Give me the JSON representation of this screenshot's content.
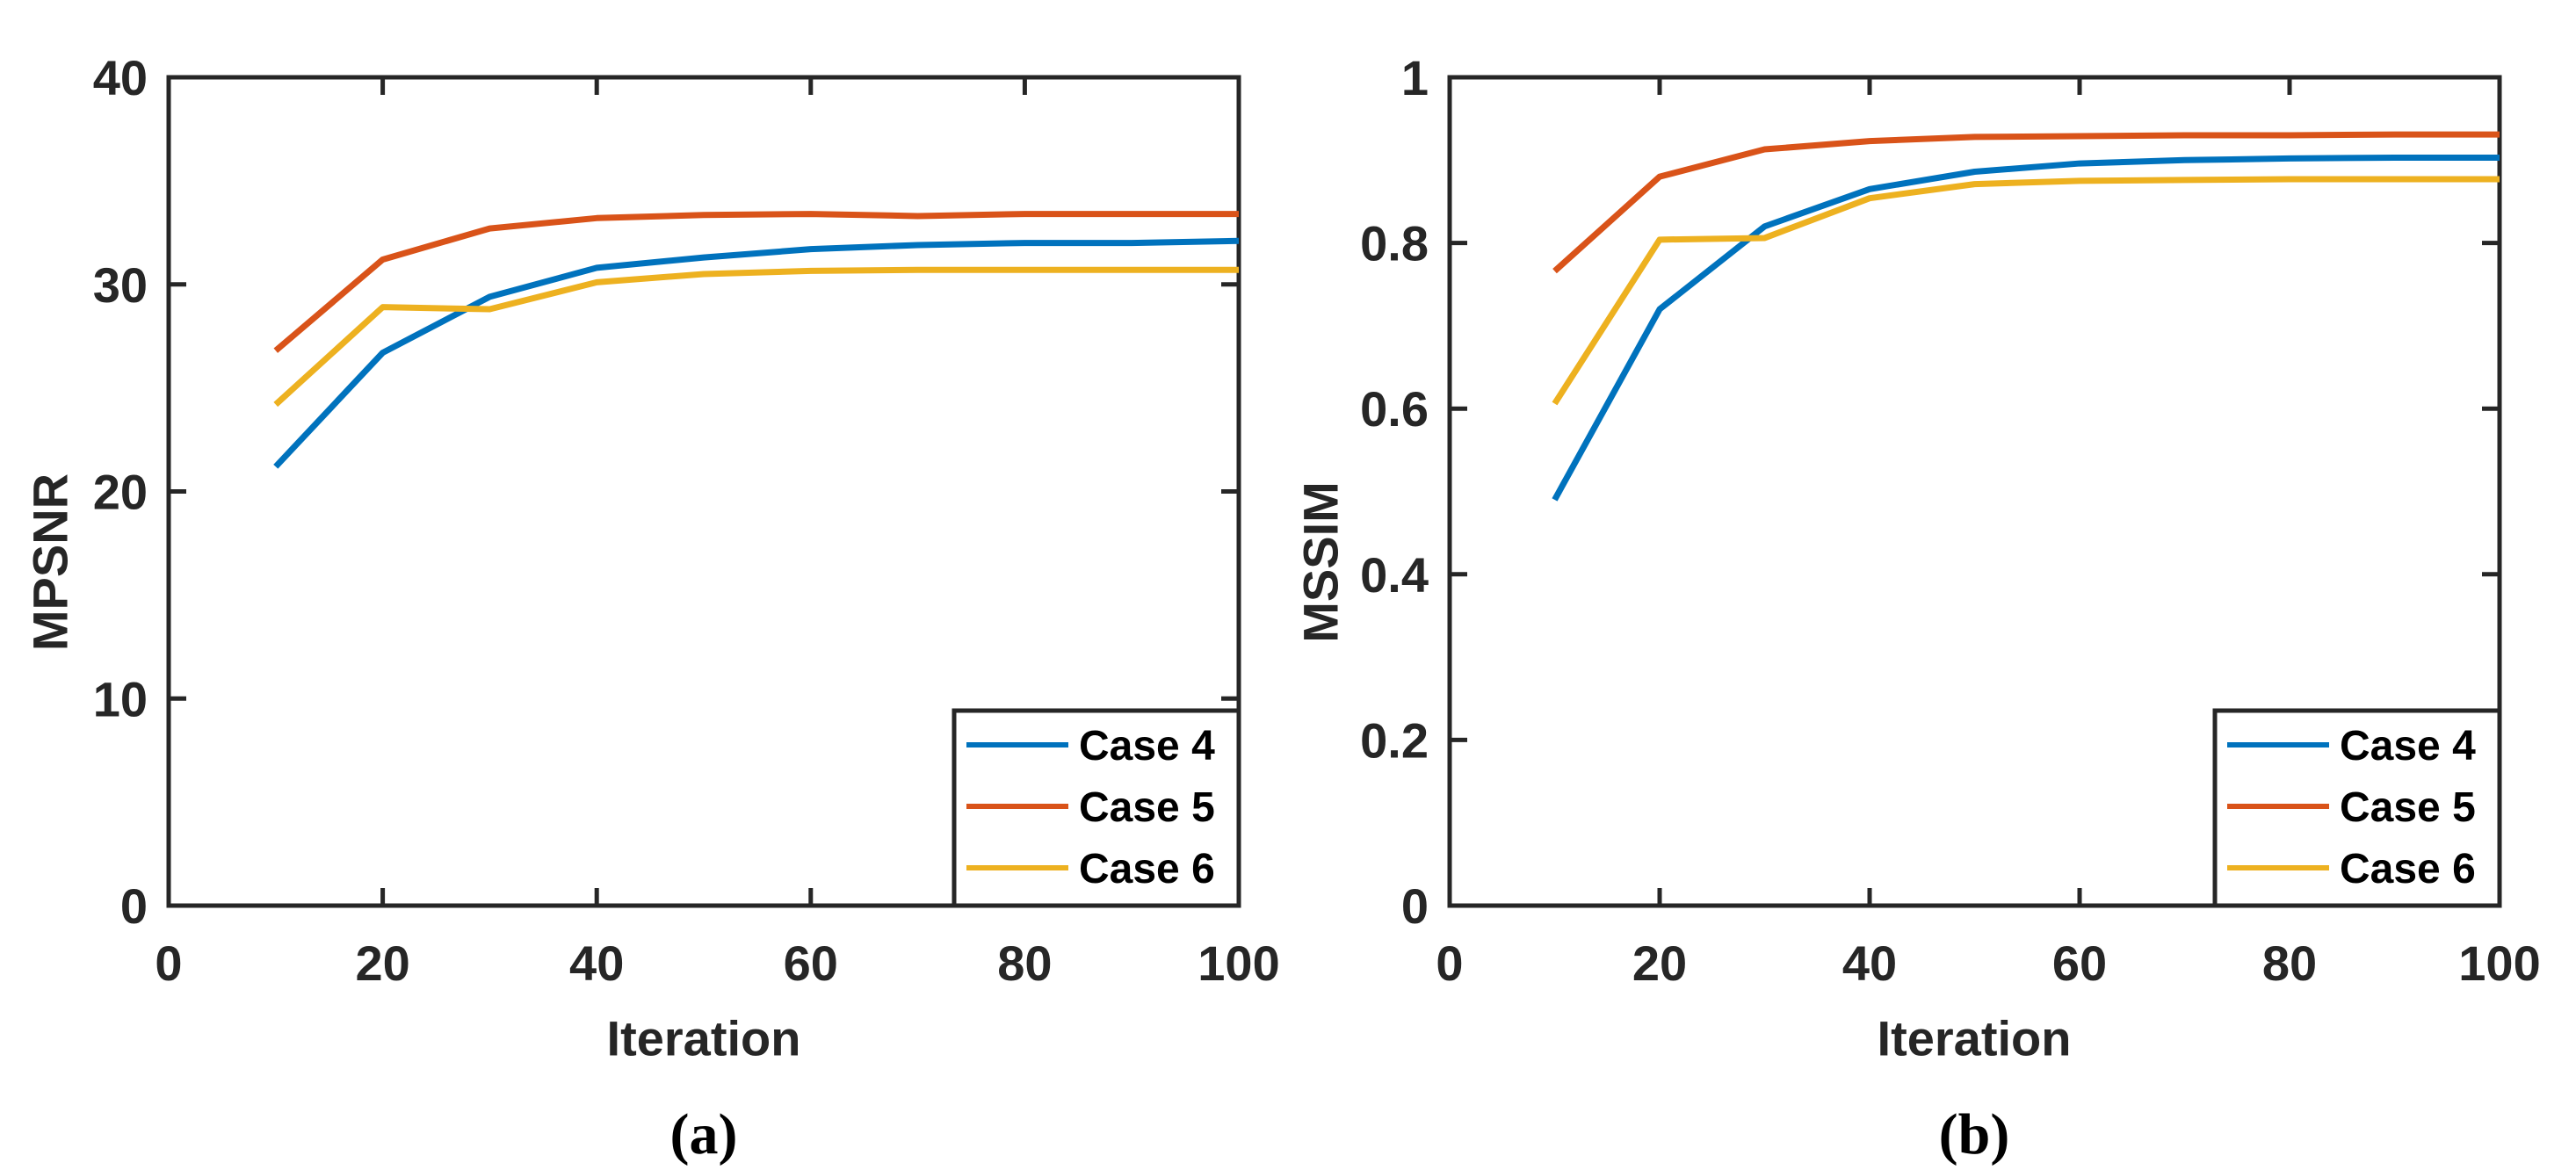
{
  "colors": {
    "background": "#ffffff",
    "axis": "#262626",
    "text": "#262626",
    "case4_blue": "#0072BD",
    "case5_red": "#D95319",
    "case6_yellow": "#EDB120"
  },
  "chart_data": [
    {
      "type": "line",
      "caption": "(a)",
      "xlabel": "Iteration",
      "ylabel": "MPSNR",
      "xlim": [
        0,
        100
      ],
      "ylim": [
        0,
        40
      ],
      "xticks": [
        0,
        20,
        40,
        60,
        80,
        100
      ],
      "xtick_labels": [
        "0",
        "20",
        "40",
        "60",
        "80",
        "100"
      ],
      "yticks": [
        0,
        10,
        20,
        30,
        40
      ],
      "ytick_labels": [
        "0",
        "10",
        "20",
        "30",
        "40"
      ],
      "grid": false,
      "legend_position": "bottom-right",
      "x": [
        10,
        20,
        30,
        40,
        50,
        60,
        70,
        80,
        90,
        100
      ],
      "series": [
        {
          "name": "Case 4",
          "color": "#0072BD",
          "values": [
            21.2,
            26.7,
            29.4,
            30.8,
            31.3,
            31.7,
            31.9,
            32.0,
            32.0,
            32.1
          ]
        },
        {
          "name": "Case 5",
          "color": "#D95319",
          "values": [
            26.8,
            31.2,
            32.7,
            33.2,
            33.35,
            33.4,
            33.3,
            33.4,
            33.4,
            33.4
          ]
        },
        {
          "name": "Case 6",
          "color": "#EDB120",
          "values": [
            24.2,
            28.9,
            28.8,
            30.1,
            30.5,
            30.65,
            30.7,
            30.7,
            30.7,
            30.7
          ]
        }
      ]
    },
    {
      "type": "line",
      "caption": "(b)",
      "xlabel": "Iteration",
      "ylabel": "MSSIM",
      "xlim": [
        0,
        100
      ],
      "ylim": [
        0,
        1
      ],
      "xticks": [
        0,
        20,
        40,
        60,
        80,
        100
      ],
      "xtick_labels": [
        "0",
        "20",
        "40",
        "60",
        "80",
        "100"
      ],
      "yticks": [
        0,
        0.2,
        0.4,
        0.6,
        0.8,
        1
      ],
      "ytick_labels": [
        "0",
        "0.2",
        "0.4",
        "0.6",
        "0.8",
        "1"
      ],
      "grid": false,
      "legend_position": "bottom-right",
      "x": [
        10,
        20,
        30,
        40,
        50,
        60,
        70,
        80,
        90,
        100
      ],
      "series": [
        {
          "name": "Case 4",
          "color": "#0072BD",
          "values": [
            0.49,
            0.72,
            0.82,
            0.865,
            0.886,
            0.896,
            0.9,
            0.902,
            0.903,
            0.903
          ]
        },
        {
          "name": "Case 5",
          "color": "#D95319",
          "values": [
            0.766,
            0.88,
            0.913,
            0.923,
            0.928,
            0.929,
            0.93,
            0.93,
            0.931,
            0.931
          ]
        },
        {
          "name": "Case 6",
          "color": "#EDB120",
          "values": [
            0.606,
            0.804,
            0.806,
            0.854,
            0.871,
            0.875,
            0.876,
            0.877,
            0.877,
            0.877
          ]
        }
      ]
    }
  ]
}
